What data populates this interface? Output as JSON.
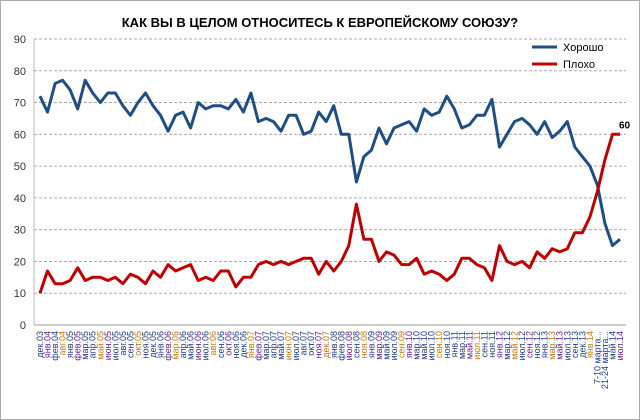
{
  "chart_data": {
    "type": "line",
    "title": "КАК ВЫ В ЦЕЛОМ ОТНОСИТЕСЬ К ЕВРОПЕЙСКОМУ СОЮЗУ?",
    "ylim": [
      0,
      90
    ],
    "yticks": [
      "0",
      "10",
      "20",
      "30",
      "40",
      "50",
      "60",
      "70",
      "80",
      "90"
    ],
    "grid": true,
    "legend": "top-right",
    "categories": [
      "дек.03",
      "янв.04",
      "фев.04",
      "авг.04",
      "янв.05",
      "фев.05",
      "мар.05",
      "апр.05",
      "май.05",
      "июн.05",
      "июл.05",
      "авг.05",
      "сен.05",
      "окт.05",
      "ноя.05",
      "дек.05",
      "янв.06",
      "фев.06",
      "мар.06",
      "апр.06",
      "май.06",
      "июн.06",
      "июл.06",
      "авг.06",
      "сен.06",
      "окт.06",
      "ноя.06",
      "дек.06",
      "янв.07",
      "фев.07",
      "мар.07",
      "апр.07",
      "май.07",
      "июн.07",
      "июл.07",
      "авг.07",
      "окт.07",
      "ноя.07",
      "дек.07",
      "янв.08",
      "фев.08",
      "июл.08",
      "сен.08",
      "ноя.08",
      "янв.09",
      "мар.09",
      "май.09",
      "июл.09",
      "сен.09",
      "янв.10",
      "мар.10",
      "май.10",
      "июл.10",
      "сен.10",
      "ноя.10",
      "янв.11",
      "мар.11",
      "май.11",
      "июл.11",
      "сен.11",
      "ноя.11",
      "янв.12",
      "мар.12",
      "май.12",
      "июл.12",
      "сен.12",
      "ноя.12",
      "янв.13",
      "мар.13",
      "май.13",
      "июл.13",
      "сен.13",
      "дек.13",
      "янв.14",
      "7-10 марта...",
      "21-24 марта...",
      "май.14",
      "июл.14"
    ],
    "series": [
      {
        "name": "Хорошо",
        "color": "#1f4e85",
        "values": [
          72,
          67,
          76,
          77,
          74,
          68,
          77,
          73,
          70,
          73,
          73,
          69,
          66,
          70,
          73,
          69,
          66,
          61,
          66,
          67,
          62,
          70,
          68,
          69,
          69,
          68,
          71,
          67,
          73,
          64,
          65,
          64,
          61,
          66,
          66,
          60,
          61,
          67,
          64,
          69,
          60,
          60,
          45,
          53,
          55,
          62,
          57,
          62,
          63,
          64,
          61,
          68,
          66,
          67,
          72,
          68,
          62,
          63,
          66,
          66,
          71,
          56,
          60,
          64,
          65,
          63,
          60,
          64,
          59,
          61,
          64,
          56,
          53,
          50,
          44,
          32,
          25,
          27
        ]
      },
      {
        "name": "Плохо",
        "color": "#c00000",
        "values": [
          10,
          17,
          13,
          13,
          14,
          18,
          14,
          15,
          15,
          14,
          15,
          13,
          16,
          15,
          13,
          17,
          15,
          19,
          17,
          18,
          19,
          14,
          15,
          14,
          17,
          17,
          12,
          15,
          15,
          19,
          20,
          19,
          20,
          19,
          20,
          21,
          21,
          16,
          20,
          17,
          20,
          25,
          38,
          27,
          27,
          20,
          23,
          22,
          19,
          19,
          21,
          16,
          17,
          16,
          14,
          16,
          21,
          21,
          19,
          18,
          14,
          25,
          20,
          19,
          20,
          18,
          23,
          21,
          24,
          23,
          24,
          29,
          29,
          34,
          42,
          52,
          60,
          60
        ]
      }
    ],
    "annotations": [
      "60"
    ]
  }
}
